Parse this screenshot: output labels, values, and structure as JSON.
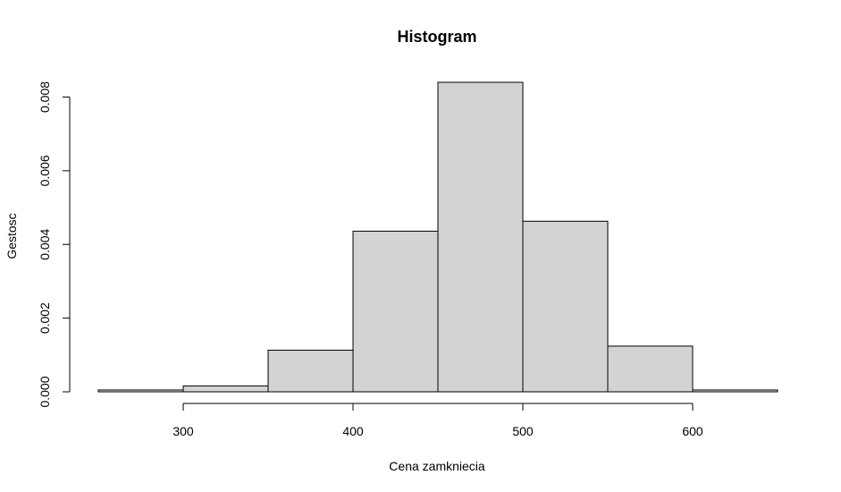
{
  "chart_data": {
    "type": "bar",
    "title": "Histogram",
    "xlabel": "Cena zamkniecia",
    "ylabel": "Gestosc",
    "bins": [
      {
        "start": 250,
        "end": 300,
        "density": 5e-05
      },
      {
        "start": 300,
        "end": 350,
        "density": 0.00016
      },
      {
        "start": 350,
        "end": 400,
        "density": 0.00113
      },
      {
        "start": 400,
        "end": 450,
        "density": 0.00436
      },
      {
        "start": 450,
        "end": 500,
        "density": 0.0084
      },
      {
        "start": 500,
        "end": 550,
        "density": 0.00463
      },
      {
        "start": 550,
        "end": 600,
        "density": 0.00124
      },
      {
        "start": 600,
        "end": 650,
        "density": 5e-05
      }
    ],
    "xlim": [
      250,
      650
    ],
    "ylim": [
      0,
      0.0084
    ],
    "x_ticks": [
      {
        "value": 300,
        "label": "300"
      },
      {
        "value": 400,
        "label": "400"
      },
      {
        "value": 500,
        "label": "500"
      },
      {
        "value": 600,
        "label": "600"
      }
    ],
    "y_ticks": [
      {
        "value": 0,
        "label": "0.000"
      },
      {
        "value": 0.002,
        "label": "0.002"
      },
      {
        "value": 0.004,
        "label": "0.004"
      },
      {
        "value": 0.006,
        "label": "0.006"
      },
      {
        "value": 0.008,
        "label": "0.008"
      }
    ],
    "bar_fill": "#d3d3d3",
    "bar_stroke": "#000000",
    "grid": false
  }
}
